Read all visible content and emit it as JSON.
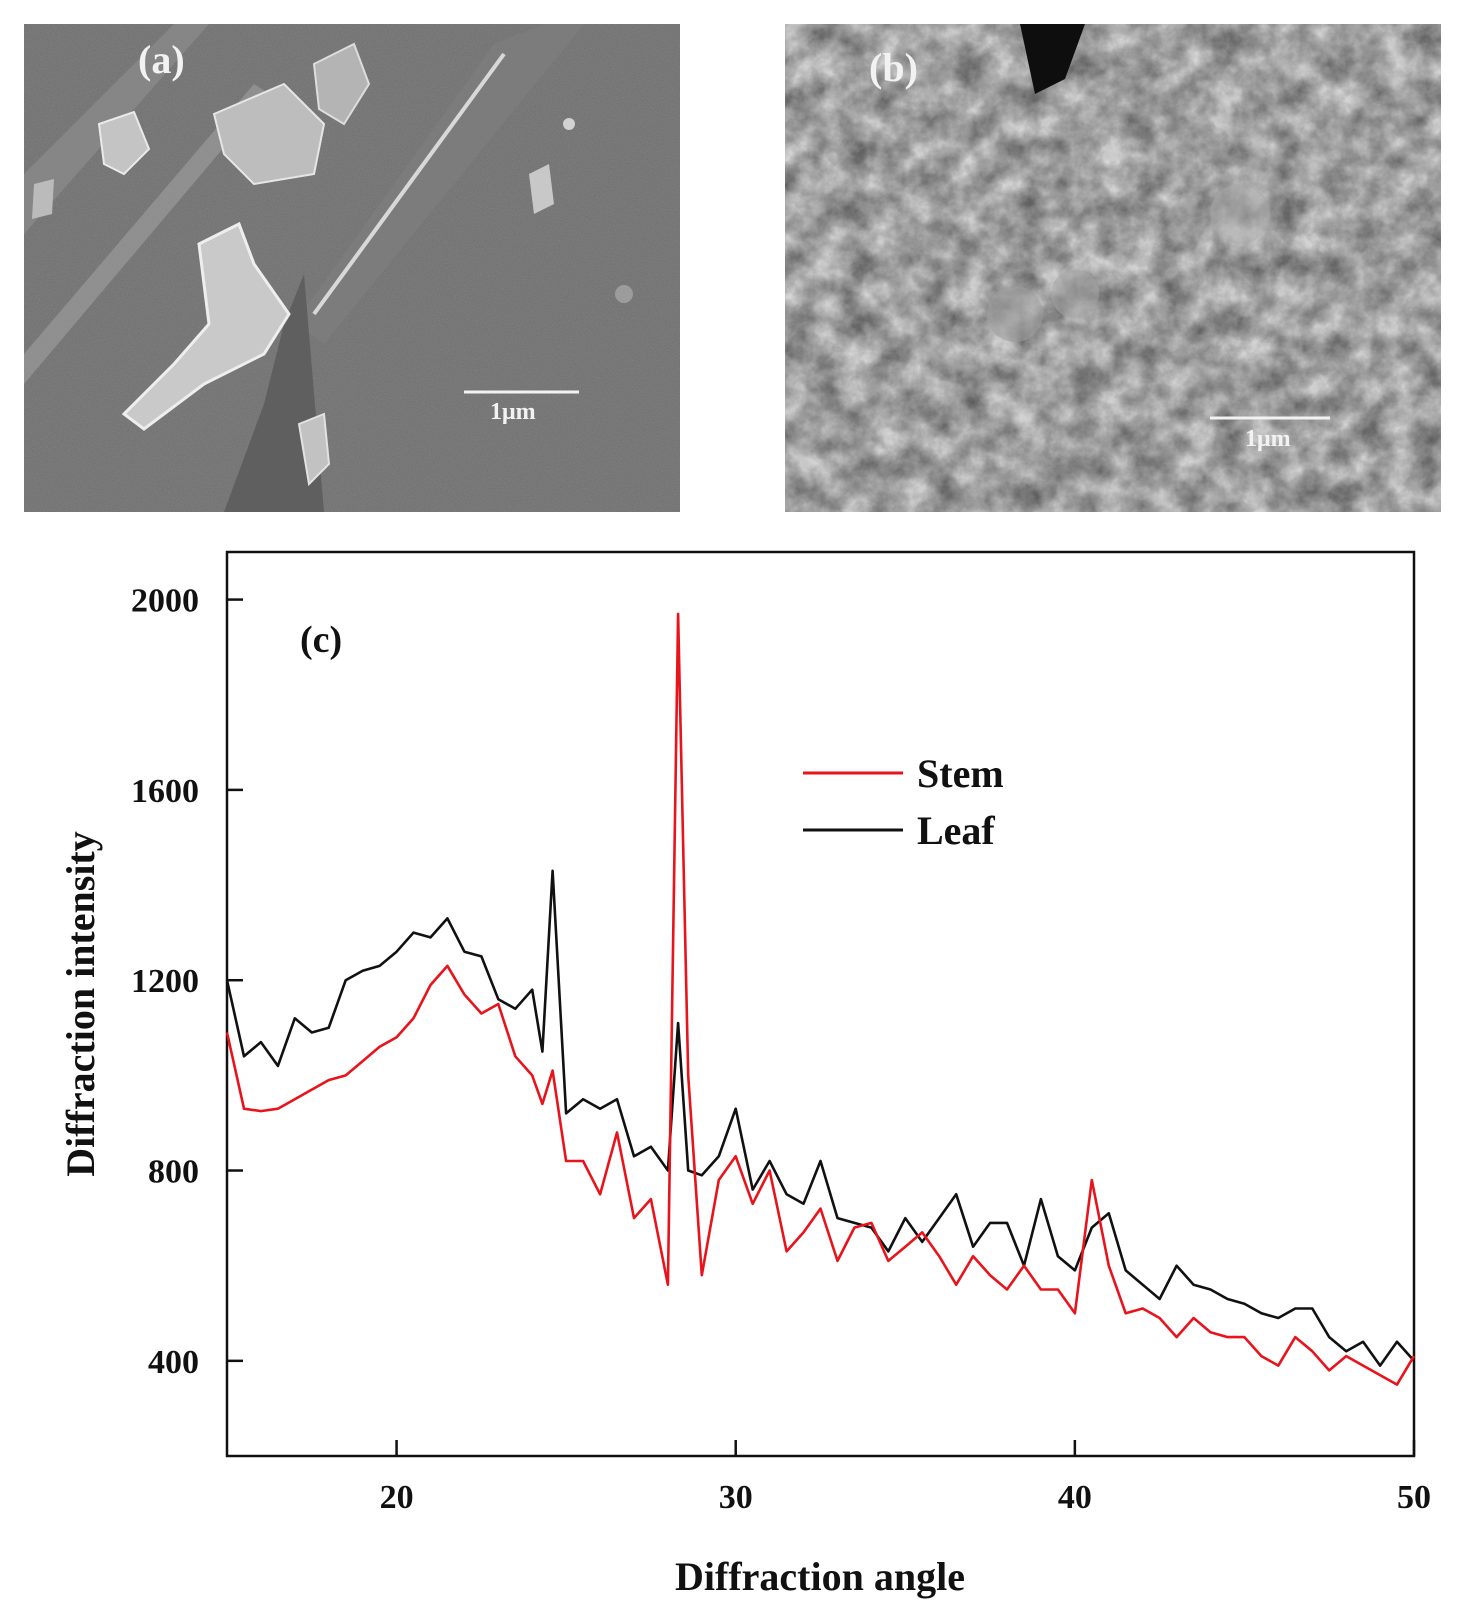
{
  "sem_panels": [
    {
      "label": "(a)",
      "scalebar": "1μm",
      "texture": "smooth-surface"
    },
    {
      "label": "(b)",
      "scalebar": "1μm",
      "texture": "rough-surface"
    }
  ],
  "chart_data": {
    "type": "line",
    "panel_label": "(c)",
    "title": "",
    "xlabel": "Diffraction angle",
    "ylabel": "Diffraction intensity",
    "xlim": [
      15,
      50
    ],
    "ylim": [
      200,
      2100
    ],
    "xticks": [
      20,
      30,
      40,
      50
    ],
    "yticks": [
      400,
      800,
      1200,
      1600,
      2000
    ],
    "grid": false,
    "legend_position": "upper-center-right",
    "x": [
      15,
      15.5,
      16,
      16.5,
      17,
      17.5,
      18,
      18.5,
      19,
      19.5,
      20,
      20.5,
      21,
      21.5,
      22,
      22.5,
      23,
      23.5,
      24,
      24.3,
      24.6,
      25,
      25.5,
      26,
      26.5,
      27,
      27.5,
      28,
      28.3,
      28.6,
      29,
      29.5,
      30,
      30.5,
      31,
      31.5,
      32,
      32.5,
      33,
      33.5,
      34,
      34.5,
      35,
      35.5,
      36,
      36.5,
      37,
      37.5,
      38,
      38.5,
      39,
      39.5,
      40,
      40.5,
      41,
      41.5,
      42,
      42.5,
      43,
      43.5,
      44,
      44.5,
      45,
      45.5,
      46,
      46.5,
      47,
      47.5,
      48,
      48.5,
      49,
      49.5,
      50
    ],
    "series": [
      {
        "name": "Stem",
        "color": "#e8131b",
        "values": [
          1090,
          930,
          925,
          930,
          950,
          970,
          990,
          1000,
          1030,
          1060,
          1080,
          1120,
          1190,
          1230,
          1170,
          1130,
          1150,
          1040,
          1000,
          940,
          1010,
          820,
          820,
          750,
          880,
          700,
          740,
          560,
          1970,
          1000,
          580,
          780,
          830,
          730,
          800,
          630,
          670,
          720,
          610,
          680,
          690,
          610,
          640,
          670,
          620,
          560,
          620,
          580,
          550,
          600,
          550,
          550,
          500,
          780,
          600,
          500,
          510,
          490,
          450,
          490,
          460,
          450,
          450,
          410,
          390,
          450,
          420,
          380,
          410,
          390,
          370,
          350,
          410
        ]
      },
      {
        "name": "Leaf",
        "color": "#111111",
        "values": [
          1200,
          1040,
          1070,
          1020,
          1120,
          1090,
          1100,
          1200,
          1220,
          1230,
          1260,
          1300,
          1290,
          1330,
          1260,
          1250,
          1160,
          1140,
          1180,
          1050,
          1430,
          920,
          950,
          930,
          950,
          830,
          850,
          800,
          1110,
          800,
          790,
          830,
          930,
          760,
          820,
          750,
          730,
          820,
          700,
          690,
          680,
          630,
          700,
          650,
          700,
          750,
          640,
          690,
          690,
          600,
          740,
          620,
          590,
          680,
          710,
          590,
          560,
          530,
          600,
          560,
          550,
          530,
          520,
          500,
          490,
          510,
          510,
          450,
          420,
          440,
          390,
          440,
          400
        ]
      }
    ]
  }
}
